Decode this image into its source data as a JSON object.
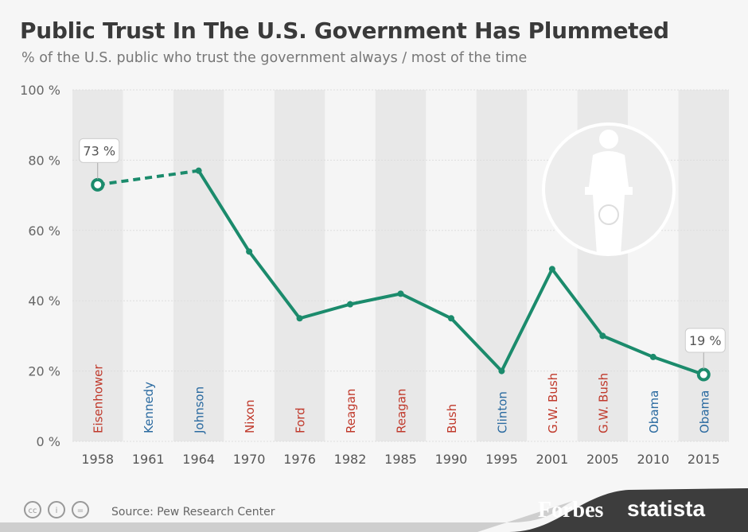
{
  "title": "Public Trust In The U.S. Government Has Plummeted",
  "subtitle": "% of the U.S. public who trust the government always / most of the time",
  "source": "Source: Pew Research Center",
  "brands": {
    "forbes": "Forbes",
    "statista": "statista"
  },
  "license_icons": [
    "cc-icon",
    "attribution-icon",
    "no-derivatives-icon"
  ],
  "colors": {
    "line": "#1b8b6c",
    "republican": "#c0392b",
    "democrat": "#2a6aa0",
    "stripe": "#e8e8e8",
    "background": "#f5f5f5"
  },
  "chart_data": {
    "type": "line",
    "title": "Public Trust In The U.S. Government Has Plummeted",
    "categories": [
      "1958",
      "1961",
      "1964",
      "1970",
      "1976",
      "1982",
      "1985",
      "1990",
      "1995",
      "2001",
      "2005",
      "2010",
      "2015"
    ],
    "presidents": [
      {
        "name": "Eisenhower",
        "party": "R"
      },
      {
        "name": "Kennedy",
        "party": "D"
      },
      {
        "name": "Johnson",
        "party": "D"
      },
      {
        "name": "Nixon",
        "party": "R"
      },
      {
        "name": "Ford",
        "party": "R"
      },
      {
        "name": "Reagan",
        "party": "R"
      },
      {
        "name": "Reagan",
        "party": "R"
      },
      {
        "name": "Bush",
        "party": "R"
      },
      {
        "name": "Clinton",
        "party": "D"
      },
      {
        "name": "G.W. Bush",
        "party": "R"
      },
      {
        "name": "G.W. Bush",
        "party": "R"
      },
      {
        "name": "Obama",
        "party": "D"
      },
      {
        "name": "Obama",
        "party": "D"
      }
    ],
    "values": [
      73,
      null,
      77,
      54,
      35,
      39,
      42,
      35,
      20,
      49,
      30,
      24,
      19
    ],
    "dashed_segment": [
      "1958",
      "1964"
    ],
    "callouts": [
      {
        "category": "1958",
        "label": "73 %"
      },
      {
        "category": "2015",
        "label": "19 %"
      }
    ],
    "yticks": [
      "0 %",
      "20 %",
      "40 %",
      "60 %",
      "80 %",
      "100 %"
    ],
    "ylim": [
      0,
      100
    ],
    "grid": true,
    "legend": "none"
  }
}
